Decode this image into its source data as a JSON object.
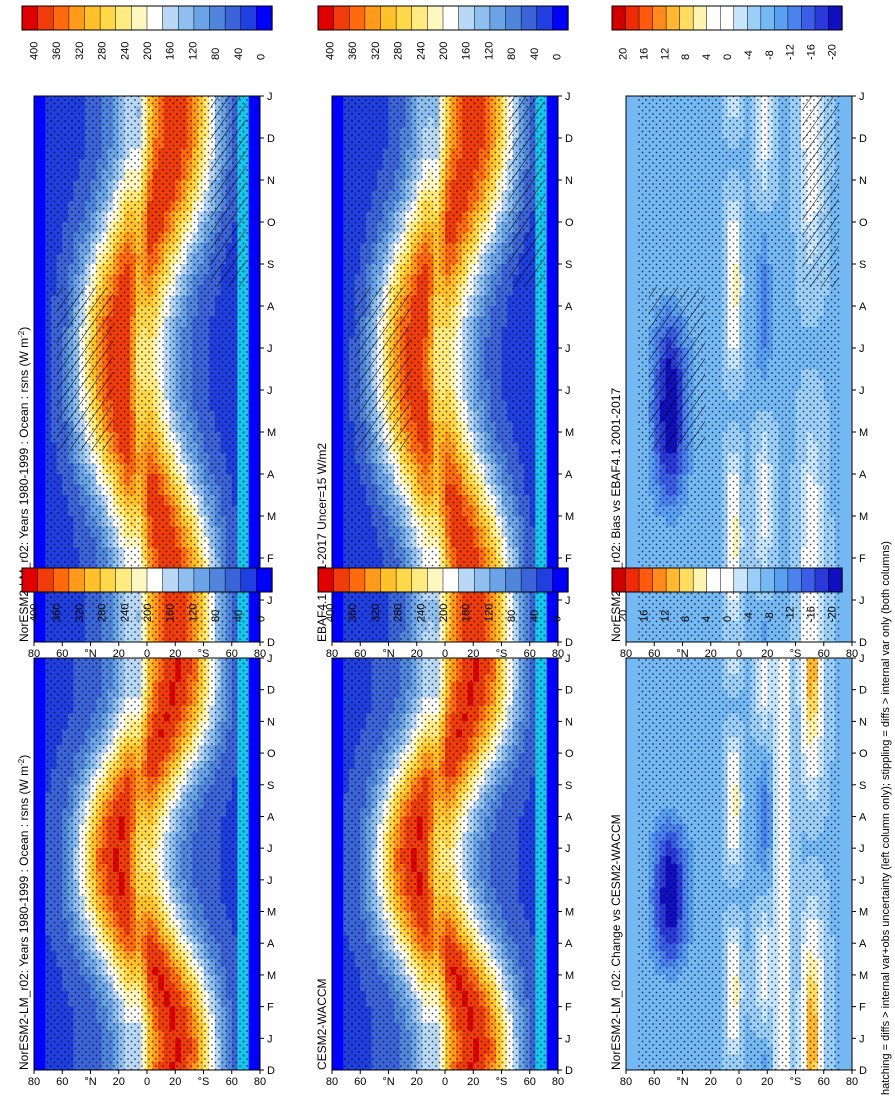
{
  "figure": {
    "footnote": "hatching = diffs > internal var+obs uncertainty (left column only); stippling = diffs > internal var only (both columns)"
  },
  "colors": {
    "abs_scale": [
      "#0000ff",
      "#1f3fe0",
      "#3a64d8",
      "#4f86dc",
      "#6aa3e6",
      "#8fbfef",
      "#b8d8f5",
      "#ffffff",
      "#fff7c0",
      "#ffeb80",
      "#ffd84a",
      "#ffc12a",
      "#ff9a1a",
      "#ff6a0f",
      "#f03c0a",
      "#e00000"
    ],
    "diff_scale": [
      "#1010c0",
      "#2a3ad8",
      "#3a5fe6",
      "#4a82ee",
      "#5aa0f2",
      "#74b8f4",
      "#9ccff8",
      "#c8e6fb",
      "#ffffff",
      "#ffffff",
      "#fff3b0",
      "#ffdd60",
      "#ffb830",
      "#ff8a1c",
      "#ff5a10",
      "#ee2a08",
      "#d00000"
    ],
    "polar_blue": "#0000ff",
    "band_cyan": "#13c7ee"
  },
  "chart_data": [
    {
      "id": "p1",
      "type": "heatmap",
      "title": "NorESM2-LM_r02: Years 1980-1999 : Ocean : rsns (W m",
      "title_units_sup": "-2",
      "title_close": ")",
      "x_ticklabels": [
        "D",
        "J",
        "F",
        "M",
        "A",
        "M",
        "J",
        "J",
        "A",
        "S",
        "O",
        "N",
        "D",
        "J"
      ],
      "y_ticklabels": [
        "80",
        "60",
        "°N",
        "20",
        "0",
        "20",
        "°S",
        "60",
        "80"
      ],
      "colorbar_ticklabels": [
        "400",
        "360",
        "320",
        "280",
        "240",
        "200",
        "160",
        "120",
        "80",
        "40",
        "0"
      ],
      "colorbar_range": [
        0,
        400
      ],
      "colorbar_step": 20,
      "scale": "abs",
      "hatching": true,
      "stippling": true
    },
    {
      "id": "p2",
      "type": "heatmap",
      "title": "NorESM2-LM_r02: Years 1980-1999 : Ocean : rsns (W m",
      "title_units_sup": "-2",
      "title_close": ")",
      "x_ticklabels": [
        "D",
        "J",
        "F",
        "M",
        "A",
        "M",
        "J",
        "J",
        "A",
        "S",
        "O",
        "N",
        "D",
        "J"
      ],
      "y_ticklabels": [
        "80",
        "60",
        "°N",
        "20",
        "0",
        "20",
        "°S",
        "60",
        "80"
      ],
      "colorbar_ticklabels": [
        "400",
        "360",
        "320",
        "280",
        "240",
        "200",
        "160",
        "120",
        "80",
        "40",
        "0"
      ],
      "colorbar_range": [
        0,
        400
      ],
      "colorbar_step": 20,
      "scale": "abs",
      "hatching": false,
      "stippling": true
    },
    {
      "id": "p3",
      "type": "heatmap",
      "title": "EBAF4.1 2001-2017 Uncer=15 W/m2",
      "x_ticklabels": [
        "D",
        "J",
        "F",
        "M",
        "A",
        "M",
        "J",
        "J",
        "A",
        "S",
        "O",
        "N",
        "D",
        "J"
      ],
      "y_ticklabels": [
        "80",
        "60",
        "°N",
        "20",
        "0",
        "20",
        "°S",
        "60",
        "80"
      ],
      "colorbar_ticklabels": [
        "400",
        "360",
        "320",
        "280",
        "240",
        "200",
        "160",
        "120",
        "80",
        "40",
        "0"
      ],
      "colorbar_range": [
        0,
        400
      ],
      "colorbar_step": 20,
      "scale": "abs",
      "hatching": true,
      "stippling": true
    },
    {
      "id": "p4",
      "type": "heatmap",
      "title": "CESM2-WACCM",
      "x_ticklabels": [
        "D",
        "J",
        "F",
        "M",
        "A",
        "M",
        "J",
        "J",
        "A",
        "S",
        "O",
        "N",
        "D",
        "J"
      ],
      "y_ticklabels": [
        "80",
        "60",
        "°N",
        "20",
        "0",
        "20",
        "°S",
        "60",
        "80"
      ],
      "colorbar_ticklabels": [
        "400",
        "360",
        "320",
        "280",
        "240",
        "200",
        "160",
        "120",
        "80",
        "40",
        "0"
      ],
      "colorbar_range": [
        0,
        400
      ],
      "colorbar_step": 20,
      "scale": "abs",
      "hatching": false,
      "stippling": true
    },
    {
      "id": "p5",
      "type": "heatmap",
      "title": "NorESM2-LM_r02: Bias vs EBAF4.1 2001-2017",
      "x_ticklabels": [
        "D",
        "J",
        "F",
        "M",
        "A",
        "M",
        "J",
        "J",
        "A",
        "S",
        "O",
        "N",
        "D",
        "J"
      ],
      "y_ticklabels": [
        "80",
        "60",
        "°N",
        "20",
        "0",
        "20",
        "°S",
        "60",
        "80"
      ],
      "colorbar_ticklabels": [
        "20",
        "16",
        "12",
        "8",
        "4",
        "0",
        "-4",
        "-8",
        "-12",
        "-16",
        "-20"
      ],
      "colorbar_range": [
        -20,
        20
      ],
      "colorbar_step": 2,
      "scale": "diff",
      "hatching": true,
      "stippling": true
    },
    {
      "id": "p6",
      "type": "heatmap",
      "title": "NorESM2-LM_r02: Change vs CESM2-WACCM",
      "x_ticklabels": [
        "D",
        "J",
        "F",
        "M",
        "A",
        "M",
        "J",
        "J",
        "A",
        "S",
        "O",
        "N",
        "D",
        "J"
      ],
      "y_ticklabels": [
        "80",
        "60",
        "°N",
        "20",
        "0",
        "20",
        "°S",
        "60",
        "80"
      ],
      "colorbar_ticklabels": [
        "20",
        "16",
        "12",
        "8",
        "4",
        "0",
        "-4",
        "-8",
        "-12",
        "-16",
        "-20"
      ],
      "colorbar_range": [
        -20,
        20
      ],
      "colorbar_step": 2,
      "scale": "diff",
      "hatching": false,
      "stippling": true
    }
  ]
}
